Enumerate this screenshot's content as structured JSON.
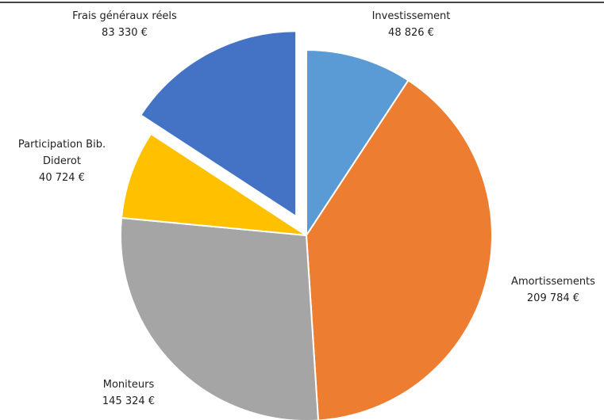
{
  "chart_data": {
    "type": "pie",
    "categories": [
      "Investissement",
      "Amortissements",
      "Moniteurs",
      "Participation Bib. Diderot",
      "Frais généraux réels"
    ],
    "values": [
      48826,
      209784,
      145324,
      40724,
      83330
    ],
    "value_labels": [
      "48 826 €",
      "209 784 €",
      "145 324 €",
      "40 724 €",
      "83 330 €"
    ],
    "colors": [
      "#5b9bd5",
      "#ed7d31",
      "#a5a5a5",
      "#ffc000",
      "#4472c4"
    ]
  }
}
